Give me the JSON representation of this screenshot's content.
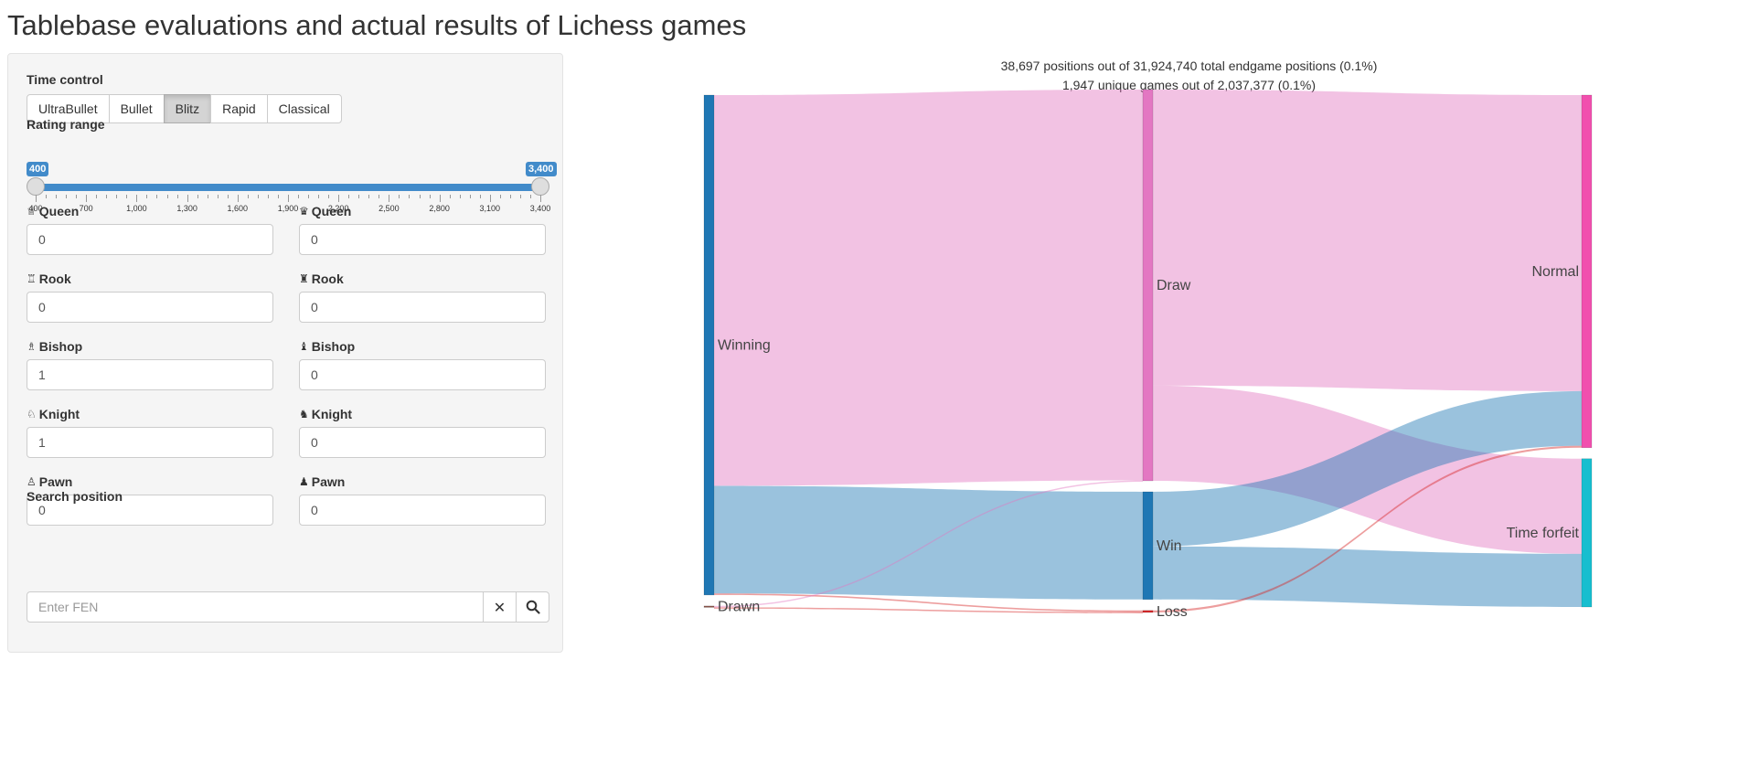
{
  "title": "Tablebase evaluations and actual results of Lichess games",
  "time_control": {
    "label": "Time control",
    "options": [
      "UltraBullet",
      "Bullet",
      "Blitz",
      "Rapid",
      "Classical"
    ],
    "selected": "Blitz"
  },
  "rating_range": {
    "label": "Rating range",
    "min": 400,
    "max": 3400,
    "low_label": "400",
    "high_label": "3,400",
    "low": 400,
    "high": 3400,
    "ticks": [
      "400",
      "700",
      "1,000",
      "1,300",
      "1,600",
      "1,900",
      "2,200",
      "2,500",
      "2,800",
      "3,100",
      "3,400"
    ]
  },
  "pieces": {
    "white": [
      {
        "name": "Queen",
        "icon": "white-queen-icon",
        "glyph": "♕",
        "value": "0"
      },
      {
        "name": "Rook",
        "icon": "white-rook-icon",
        "glyph": "♖",
        "value": "0"
      },
      {
        "name": "Bishop",
        "icon": "white-bishop-icon",
        "glyph": "♗",
        "value": "1"
      },
      {
        "name": "Knight",
        "icon": "white-knight-icon",
        "glyph": "♘",
        "value": "1"
      },
      {
        "name": "Pawn",
        "icon": "white-pawn-icon",
        "glyph": "♙",
        "value": "0"
      }
    ],
    "black": [
      {
        "name": "Queen",
        "icon": "black-queen-icon",
        "glyph": "♛",
        "value": "0"
      },
      {
        "name": "Rook",
        "icon": "black-rook-icon",
        "glyph": "♜",
        "value": "0"
      },
      {
        "name": "Bishop",
        "icon": "black-bishop-icon",
        "glyph": "♝",
        "value": "0"
      },
      {
        "name": "Knight",
        "icon": "black-knight-icon",
        "glyph": "♞",
        "value": "0"
      },
      {
        "name": "Pawn",
        "icon": "black-pawn-icon",
        "glyph": "♟",
        "value": "0"
      }
    ]
  },
  "search": {
    "label": "Search position",
    "placeholder": "Enter FEN",
    "clear_glyph": "✕",
    "search_glyph": "⚲"
  },
  "summary": {
    "positions": "38,697 positions out of 31,924,740 total endgame positions (0.1%)",
    "games": "1,947 unique games out of 2,037,377 (0.1%)"
  },
  "chart_data": {
    "type": "sankey",
    "nodes": [
      {
        "id": "Winning",
        "label": "Winning",
        "color": "#1f77b4",
        "column": 0
      },
      {
        "id": "Drawn",
        "label": "Drawn",
        "color": "#8c564b",
        "column": 0
      },
      {
        "id": "Draw",
        "label": "Draw",
        "color": "#e377c2",
        "column": 1
      },
      {
        "id": "Win",
        "label": "Win",
        "color": "#1f77b4",
        "column": 1
      },
      {
        "id": "Loss",
        "label": "Loss",
        "color": "#d62728",
        "column": 1
      },
      {
        "id": "Normal",
        "label": "Normal",
        "color": "#f14fae",
        "column": 2
      },
      {
        "id": "Time forfeit",
        "label": "Time forfeit",
        "color": "#17becf",
        "column": 2
      }
    ],
    "links": [
      {
        "source": "Winning",
        "target": "Draw",
        "value": 780,
        "color": "#e377c2"
      },
      {
        "source": "Winning",
        "target": "Win",
        "value": 215,
        "color": "#1f77b4"
      },
      {
        "source": "Winning",
        "target": "Loss",
        "value": 3,
        "color": "#d62728"
      },
      {
        "source": "Drawn",
        "target": "Draw",
        "value": 1,
        "color": "#e377c2"
      },
      {
        "source": "Drawn",
        "target": "Loss",
        "value": 1,
        "color": "#d62728"
      },
      {
        "source": "Draw",
        "target": "Normal",
        "value": 591,
        "color": "#e377c2"
      },
      {
        "source": "Draw",
        "target": "Time forfeit",
        "value": 190,
        "color": "#e377c2"
      },
      {
        "source": "Win",
        "target": "Normal",
        "value": 109,
        "color": "#1f77b4"
      },
      {
        "source": "Win",
        "target": "Time forfeit",
        "value": 106,
        "color": "#1f77b4"
      },
      {
        "source": "Loss",
        "target": "Normal",
        "value": 4,
        "color": "#d62728"
      }
    ]
  }
}
